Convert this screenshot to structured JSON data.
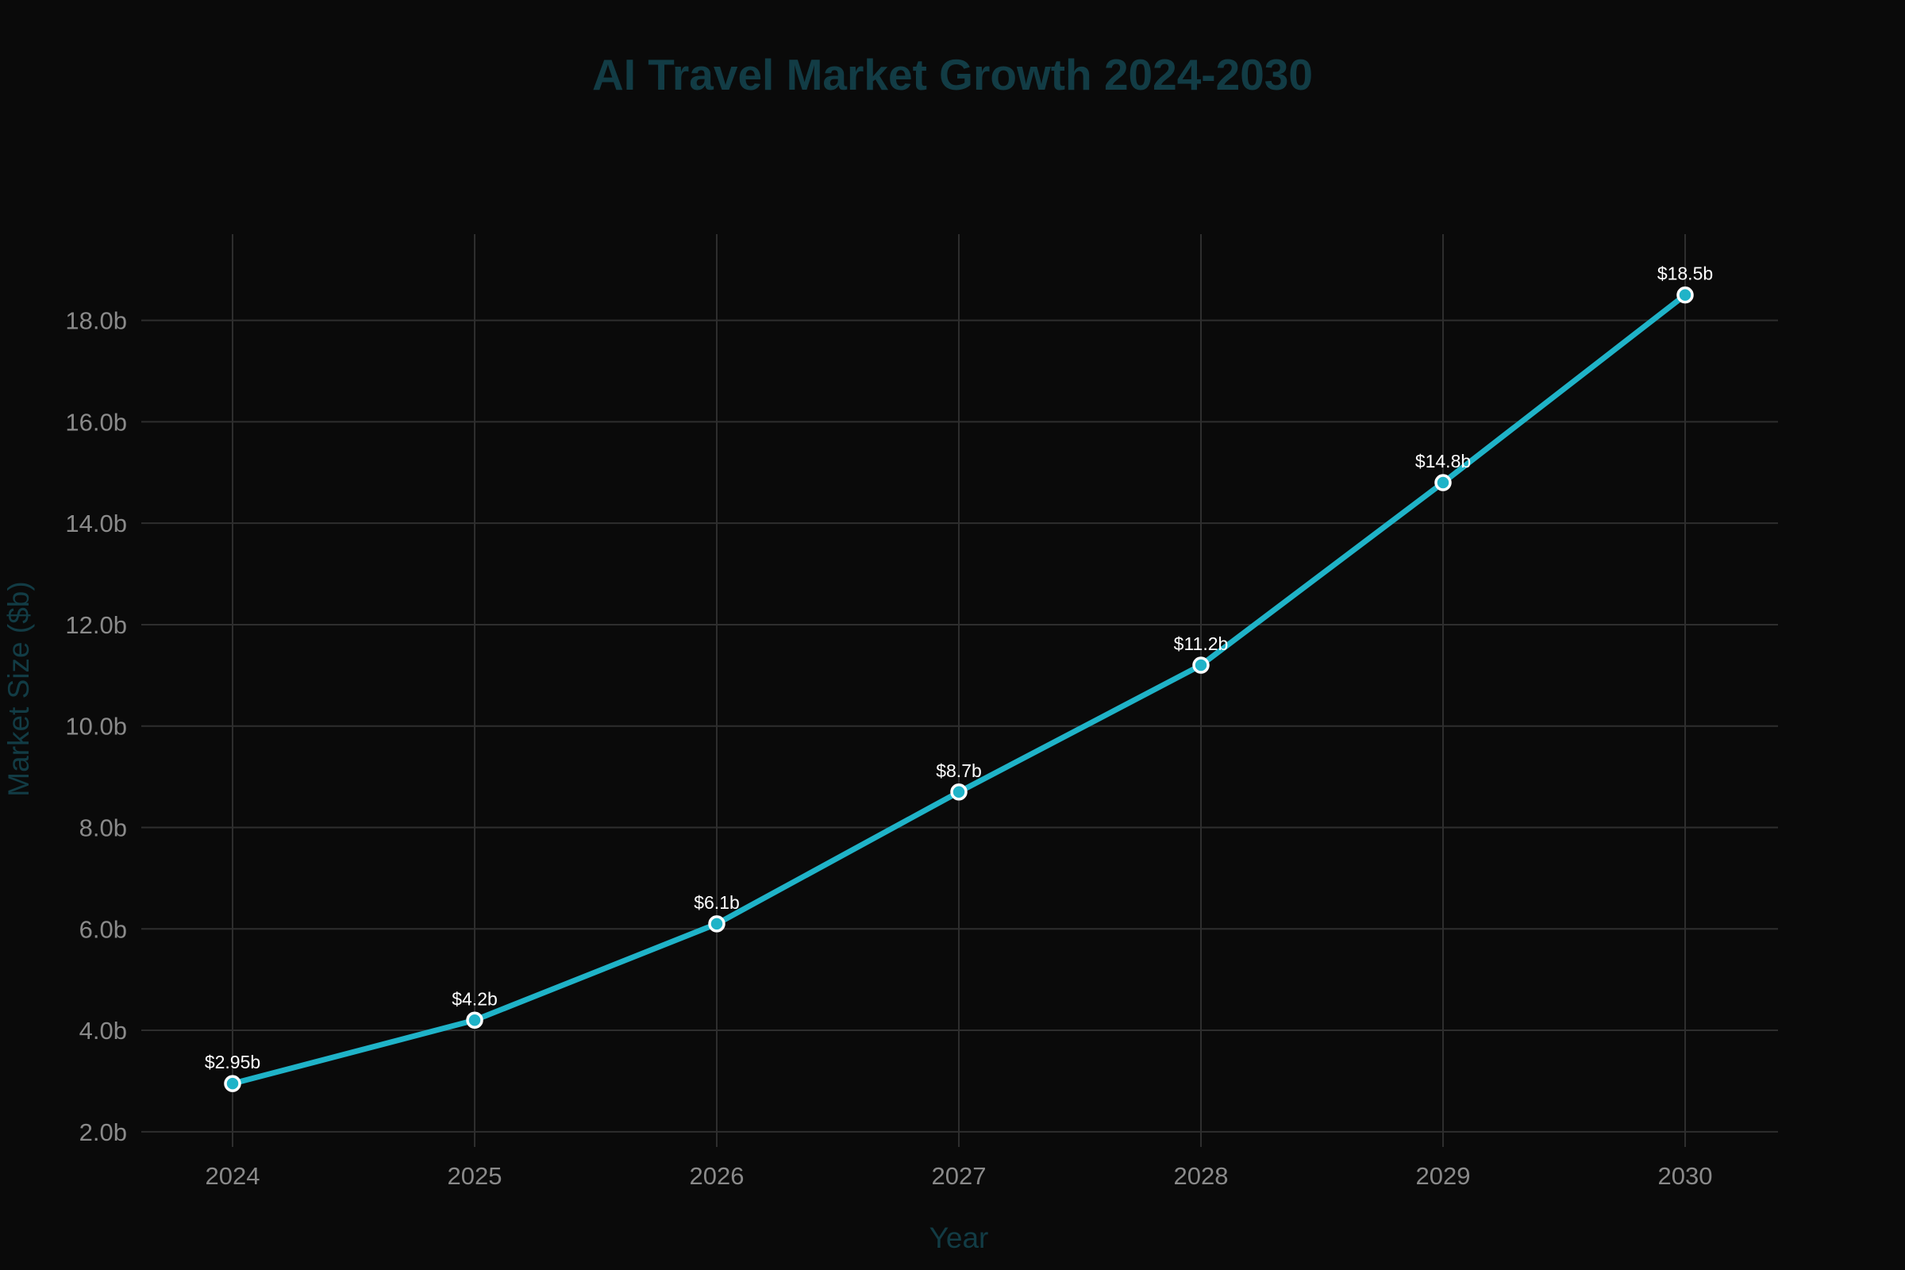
{
  "chart_data": {
    "type": "line",
    "title": "AI Travel Market Growth 2024-2030",
    "xlabel": "Year",
    "ylabel": "Market Size ($b)",
    "categories": [
      "2024",
      "2025",
      "2026",
      "2027",
      "2028",
      "2029",
      "2030"
    ],
    "values": [
      2.95,
      4.2,
      6.1,
      8.7,
      11.2,
      14.8,
      18.5
    ],
    "data_labels": [
      "$2.95b",
      "$4.2b",
      "$6.1b",
      "$8.7b",
      "$11.2b",
      "$14.8b",
      "$18.5b"
    ],
    "ylim": [
      1.7,
      19.7
    ],
    "yticks": [
      2,
      4,
      6,
      8,
      10,
      12,
      14,
      16,
      18
    ],
    "ytick_labels": [
      "2.0b",
      "4.0b",
      "6.0b",
      "8.0b",
      "10.0b",
      "12.0b",
      "14.0b",
      "16.0b",
      "18.0b"
    ],
    "grid": true,
    "legend": "none"
  },
  "colors": {
    "background": "#0a0a0a",
    "line": "#1fb3c8",
    "marker_edge": "#ffffff",
    "grid": "#2e2e2e",
    "title": "#123c45",
    "axis_title": "#123c45",
    "tick_label": "#8a8a8a",
    "data_label": "#ffffff"
  }
}
